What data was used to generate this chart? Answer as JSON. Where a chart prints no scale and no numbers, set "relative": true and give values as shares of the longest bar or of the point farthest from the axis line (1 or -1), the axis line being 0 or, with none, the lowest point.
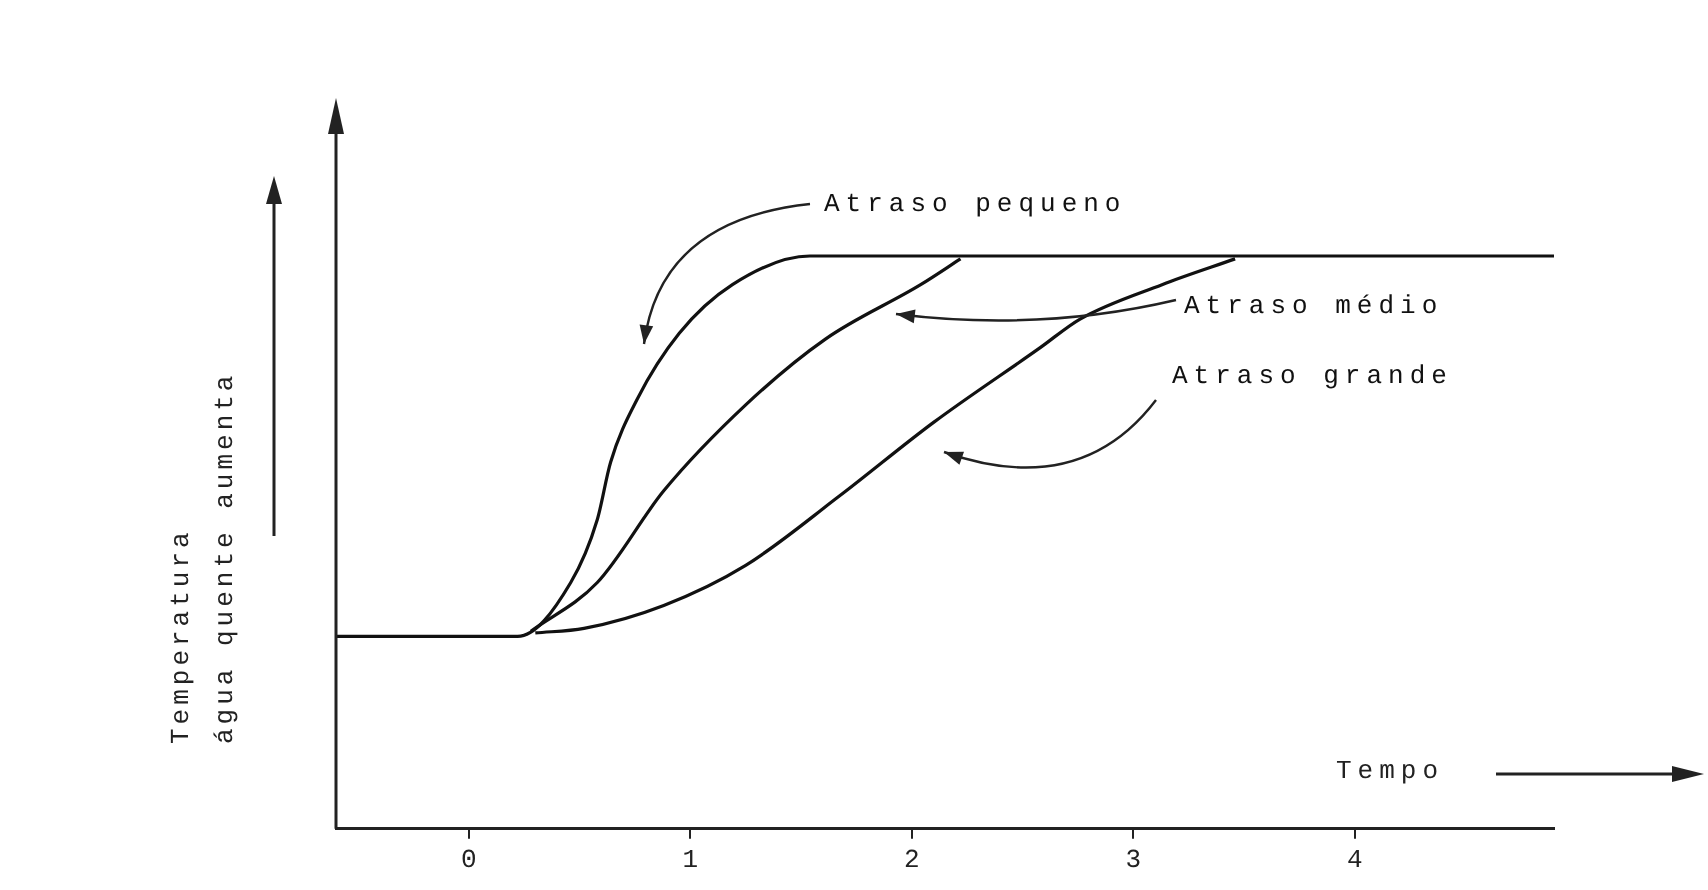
{
  "chart_data": {
    "type": "line",
    "relative": true,
    "xlabel": "Tempo",
    "ylabel": "Temperatura\nágua quente aumenta",
    "xlim": [
      -0.6,
      4.9
    ],
    "xticks": [
      0,
      1,
      2,
      3,
      4
    ],
    "grid": false,
    "legend": false,
    "marker": "none",
    "line_style": "solid",
    "series": [
      {
        "name": "Atraso pequeno",
        "color": "#111111",
        "x": [
          -0.6,
          0.22,
          0.46,
          0.58,
          0.64,
          0.76,
          0.95,
          1.19,
          1.54,
          4.9
        ],
        "values": [
          0.336,
          0.336,
          0.43,
          0.54,
          0.64,
          0.75,
          0.865,
          0.95,
          1,
          1
        ]
      },
      {
        "name": "Atraso médio",
        "color": "#111111",
        "x": [
          0.28,
          0.58,
          0.88,
          1.25,
          1.61,
          2.04,
          2.22
        ],
        "values": [
          0.345,
          0.43,
          0.59,
          0.74,
          0.855,
          0.95,
          0.995
        ]
      },
      {
        "name": "Atraso grande",
        "color": "#111111",
        "x": [
          0.3,
          0.52,
          0.88,
          1.25,
          1.67,
          2.1,
          2.58,
          2.76,
          3.13,
          3.46
        ],
        "values": [
          0.342,
          0.35,
          0.39,
          0.46,
          0.58,
          0.71,
          0.84,
          0.89,
          0.95,
          0.995
        ]
      }
    ]
  }
}
